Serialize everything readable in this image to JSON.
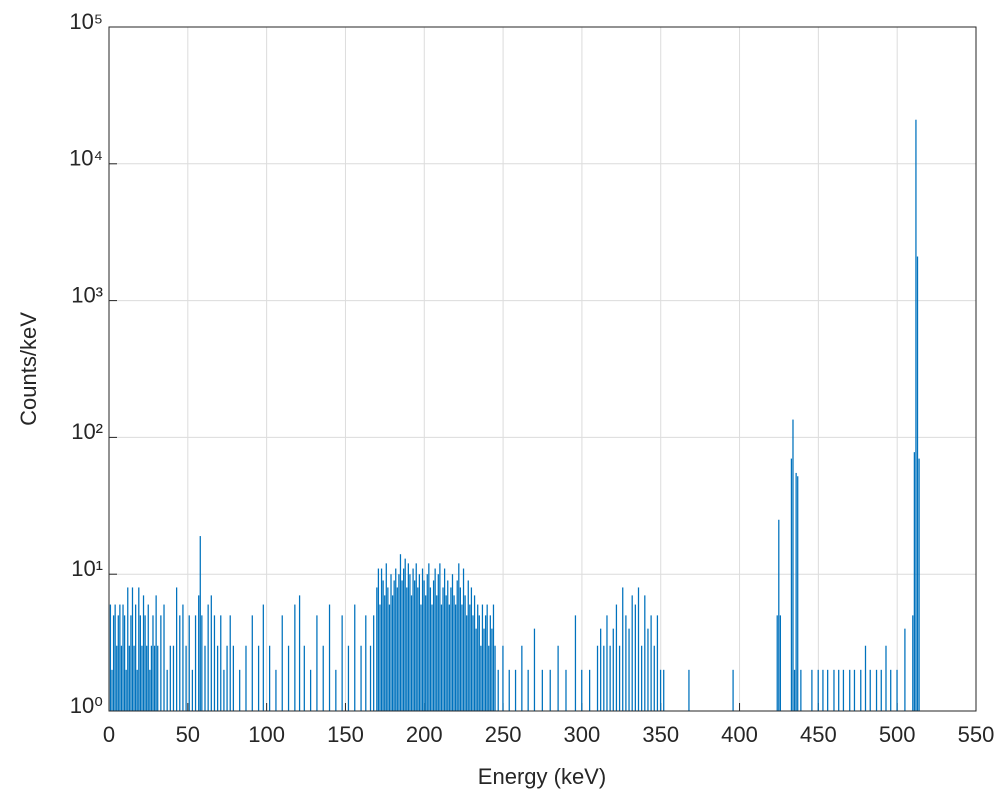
{
  "chart_data": {
    "type": "bar",
    "xlabel": "Energy (keV)",
    "ylabel": "Counts/keV",
    "color": "#0072BD",
    "grid": true,
    "yscale": "log",
    "x": [
      1,
      2,
      3,
      4,
      5,
      6,
      7,
      8,
      9,
      10,
      11,
      12,
      13,
      14,
      15,
      16,
      17,
      18,
      19,
      20,
      21,
      22,
      23,
      24,
      25,
      26,
      27,
      28,
      29,
      30,
      31,
      33,
      35,
      37,
      39,
      41,
      43,
      45,
      47,
      49,
      51,
      53,
      55,
      57,
      58,
      59,
      61,
      63,
      65,
      67,
      69,
      71,
      73,
      75,
      77,
      79,
      83,
      87,
      91,
      95,
      98,
      102,
      106,
      110,
      114,
      118,
      121,
      124,
      128,
      132,
      136,
      140,
      144,
      148,
      152,
      156,
      160,
      163,
      166,
      168,
      170,
      171,
      172,
      173,
      174,
      175,
      176,
      177,
      178,
      179,
      180,
      181,
      182,
      183,
      184,
      185,
      186,
      187,
      188,
      189,
      190,
      191,
      192,
      193,
      194,
      195,
      196,
      197,
      198,
      199,
      200,
      201,
      202,
      203,
      204,
      205,
      206,
      207,
      208,
      209,
      210,
      211,
      212,
      213,
      214,
      215,
      216,
      217,
      218,
      219,
      220,
      221,
      222,
      223,
      224,
      225,
      226,
      227,
      228,
      229,
      230,
      231,
      232,
      233,
      234,
      235,
      236,
      237,
      238,
      239,
      240,
      241,
      242,
      243,
      244,
      245,
      247,
      250,
      254,
      258,
      262,
      266,
      270,
      275,
      280,
      285,
      290,
      296,
      300,
      305,
      310,
      312,
      314,
      316,
      318,
      320,
      322,
      324,
      326,
      328,
      330,
      332,
      334,
      336,
      338,
      340,
      342,
      344,
      346,
      348,
      350,
      352,
      368,
      396,
      424,
      425,
      426,
      433,
      434,
      435,
      436,
      437,
      439,
      446,
      450,
      453,
      456,
      460,
      463,
      466,
      470,
      473,
      477,
      480,
      483,
      487,
      490,
      493,
      496,
      500,
      505,
      510,
      511,
      512,
      513,
      514
    ],
    "values": [
      6,
      2,
      5,
      6,
      3,
      5,
      6,
      3,
      6,
      5,
      2,
      8,
      3,
      5,
      8,
      3,
      6,
      2,
      8,
      5,
      3,
      7,
      5,
      3,
      6,
      2,
      3,
      5,
      3,
      7,
      3,
      5,
      6,
      2,
      3,
      3,
      8,
      5,
      6,
      3,
      5,
      2,
      5,
      7,
      19,
      5,
      3,
      6,
      7,
      5,
      3,
      5,
      2,
      3,
      5,
      3,
      2,
      3,
      5,
      3,
      6,
      3,
      2,
      5,
      3,
      6,
      7,
      3,
      2,
      5,
      3,
      6,
      2,
      5,
      3,
      6,
      3,
      5,
      3,
      5,
      8,
      11,
      6,
      11,
      9,
      7,
      12,
      8,
      6,
      10,
      7,
      9,
      11,
      8,
      10,
      14,
      9,
      11,
      13,
      8,
      12,
      10,
      7,
      11,
      9,
      12,
      8,
      10,
      6,
      11,
      9,
      7,
      10,
      12,
      8,
      6,
      9,
      11,
      7,
      10,
      12,
      6,
      8,
      11,
      7,
      9,
      6,
      8,
      10,
      7,
      6,
      9,
      12,
      8,
      6,
      11,
      7,
      5,
      9,
      6,
      8,
      5,
      7,
      4,
      6,
      5,
      3,
      6,
      4,
      5,
      6,
      3,
      5,
      4,
      6,
      3,
      2,
      3,
      2,
      2,
      3,
      2,
      4,
      2,
      2,
      3,
      2,
      5,
      2,
      2,
      3,
      4,
      3,
      5,
      3,
      4,
      6,
      3,
      8,
      5,
      4,
      7,
      6,
      8,
      3,
      7,
      4,
      5,
      3,
      5,
      2,
      2,
      2,
      2,
      5,
      25,
      5,
      70,
      135,
      2,
      55,
      52,
      2,
      2,
      2,
      2,
      2,
      2,
      2,
      2,
      2,
      2,
      2,
      3,
      2,
      2,
      2,
      3,
      2,
      2,
      4,
      5,
      78,
      21000,
      2100,
      70
    ],
    "xlim": [
      0,
      550
    ],
    "xticks": [
      0,
      50,
      100,
      150,
      200,
      250,
      300,
      350,
      400,
      450,
      500,
      550
    ],
    "ylim": [
      1,
      100000
    ],
    "yticks": [
      {
        "value": 1,
        "label": "10⁰"
      },
      {
        "value": 10,
        "label": "10¹"
      },
      {
        "value": 100,
        "label": "10²"
      },
      {
        "value": 1000,
        "label": "10³"
      },
      {
        "value": 10000,
        "label": "10⁴"
      },
      {
        "value": 100000,
        "label": "10⁵"
      }
    ]
  }
}
